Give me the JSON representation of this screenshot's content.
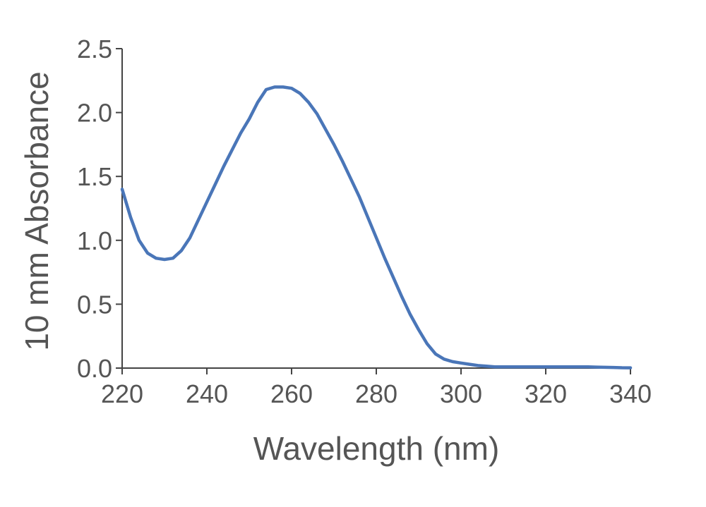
{
  "chart_data": {
    "type": "line",
    "title": "",
    "xlabel": "Wavelength (nm)",
    "ylabel": "10 mm Absorbance",
    "xlim": [
      220,
      340
    ],
    "ylim": [
      0,
      2.5
    ],
    "x_ticks": [
      "220",
      "240",
      "260",
      "280",
      "300",
      "320",
      "340"
    ],
    "y_ticks": [
      "0.0",
      "0.5",
      "1.0",
      "1.5",
      "2.0",
      "2.5"
    ],
    "grid": false,
    "legend": "none",
    "series": [
      {
        "color": "#4a76b8",
        "x": [
          220,
          222,
          224,
          226,
          228,
          230,
          232,
          234,
          236,
          238,
          240,
          242,
          244,
          246,
          248,
          250,
          252,
          254,
          256,
          258,
          260,
          262,
          264,
          266,
          268,
          270,
          272,
          274,
          276,
          278,
          280,
          282,
          284,
          286,
          288,
          290,
          292,
          294,
          296,
          298,
          300,
          302,
          304,
          306,
          308,
          310,
          312,
          314,
          316,
          318,
          320,
          322,
          324,
          326,
          328,
          330,
          332,
          334,
          336,
          338,
          340
        ],
        "y": [
          1.4,
          1.18,
          1.0,
          0.9,
          0.86,
          0.85,
          0.86,
          0.92,
          1.02,
          1.16,
          1.3,
          1.44,
          1.58,
          1.71,
          1.84,
          1.95,
          2.08,
          2.18,
          2.2,
          2.2,
          2.19,
          2.15,
          2.08,
          1.99,
          1.87,
          1.75,
          1.62,
          1.48,
          1.34,
          1.18,
          1.02,
          0.86,
          0.71,
          0.56,
          0.42,
          0.3,
          0.19,
          0.11,
          0.07,
          0.05,
          0.04,
          0.03,
          0.02,
          0.015,
          0.01,
          0.01,
          0.01,
          0.01,
          0.01,
          0.01,
          0.01,
          0.01,
          0.01,
          0.01,
          0.01,
          0.01,
          0.008,
          0.006,
          0.005,
          0.003,
          0.002
        ]
      }
    ]
  }
}
